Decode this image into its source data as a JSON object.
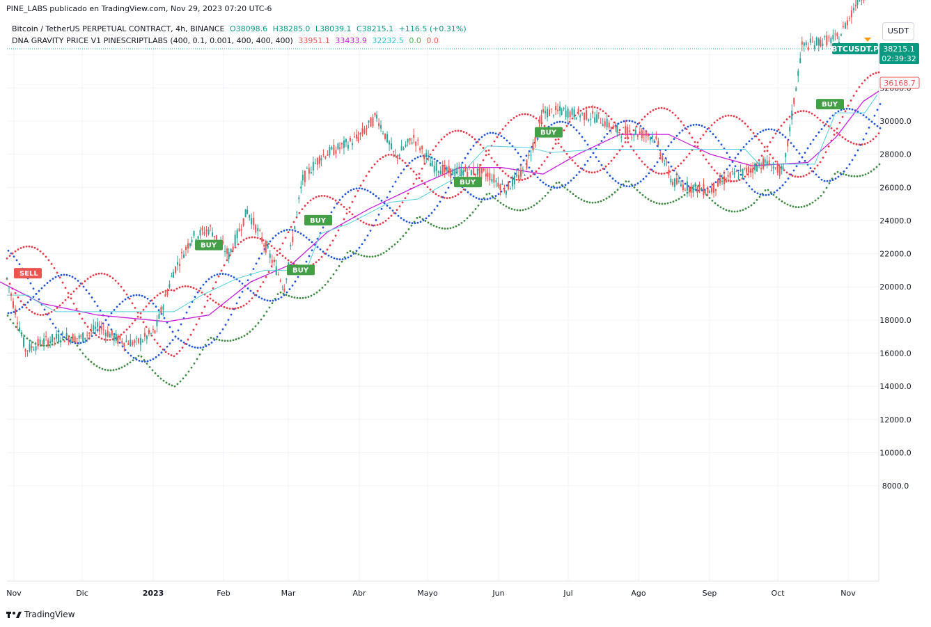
{
  "header": {
    "published": "PINE_LABS publicado en TradingView.com, Nov 29, 2023 07:20 UTC-6",
    "symbol_line": "Bitcoin / TetherUS PERPETUAL CONTRACT, 4h, BINANCE",
    "ohlc": {
      "o": "O38098.6",
      "h": "H38285.0",
      "l": "L38039.1",
      "c": "C38215.1",
      "chg": "+116.5 (+0.31%)"
    },
    "indicator_name": "DNA GRAVITY PRICE V1 PINESCRIPTLABS (400, 0.1, 0.001, 400, 400, 400)",
    "indicator_values": [
      {
        "text": "33951.1",
        "color": "#ef5350"
      },
      {
        "text": "33433.9",
        "color": "#c71ede"
      },
      {
        "text": "32232.5",
        "color": "#26c6da"
      },
      {
        "text": "0.0",
        "color": "#4caf50"
      },
      {
        "text": "0.0",
        "color": "#ef5350"
      }
    ],
    "currency_button": "USDT"
  },
  "footer": {
    "brand": "TradingView"
  },
  "price_labels": {
    "symbol_tag": "BTCUSDT.P",
    "last_price": "38215.1",
    "countdown": "02:39:32",
    "level_price": "36168.7"
  },
  "colors": {
    "up": "#26a69a",
    "down": "#ef5350",
    "red_dots": "#f23645",
    "blue_dots": "#1e53e5",
    "green_dots": "#388e3c",
    "magenta": "#c71ede",
    "cyan": "#4dd0e1",
    "buy": "#43a047",
    "sell": "#ef5350"
  },
  "chart_data": {
    "type": "line",
    "y_axis_ticks": [
      "34000.0",
      "32000.0",
      "30000.0",
      "28000.0",
      "26000.0",
      "24000.0",
      "22000.0",
      "20000.0",
      "18000.0",
      "16000.0",
      "14000.0",
      "12000.0",
      "10000.0",
      "8000.0"
    ],
    "ylim": [
      7000,
      38500
    ],
    "x_axis_ticks": [
      "Nov",
      "Dic",
      "2023",
      "Feb",
      "Mar",
      "Abr",
      "Mayo",
      "Jun",
      "Jul",
      "Ago",
      "Sep",
      "Oct",
      "Nov"
    ],
    "price_series": {
      "name": "BTCUSDT.P",
      "points": [
        [
          "Nov",
          20500
        ],
        [
          "Nov",
          16200
        ],
        [
          "Nov",
          16700
        ],
        [
          "Dic",
          17000
        ],
        [
          "Dic",
          16900
        ],
        [
          "Dic",
          17600
        ],
        [
          "Dic",
          16800
        ],
        [
          "2023",
          16600
        ],
        [
          "2023",
          17300
        ],
        [
          "2023",
          20900
        ],
        [
          "Feb",
          23000
        ],
        [
          "Feb",
          23500
        ],
        [
          "Feb",
          21900
        ],
        [
          "Feb",
          24600
        ],
        [
          "Mar",
          22400
        ],
        [
          "Mar",
          20000
        ],
        [
          "Mar",
          26500
        ],
        [
          "Mar",
          27900
        ],
        [
          "Abr",
          28400
        ],
        [
          "Abr",
          29000
        ],
        [
          "Abr",
          30300
        ],
        [
          "Abr",
          27800
        ],
        [
          "Mayo",
          29000
        ],
        [
          "Mayo",
          27300
        ],
        [
          "Mayo",
          26900
        ],
        [
          "Mayo",
          27000
        ],
        [
          "Jun",
          26800
        ],
        [
          "Jun",
          25900
        ],
        [
          "Jun",
          27000
        ],
        [
          "Jun",
          30500
        ],
        [
          "Jul",
          30600
        ],
        [
          "Jul",
          30400
        ],
        [
          "Jul",
          30200
        ],
        [
          "Jul",
          29400
        ],
        [
          "Ago",
          29300
        ],
        [
          "Ago",
          29100
        ],
        [
          "Ago",
          26300
        ],
        [
          "Sep",
          26000
        ],
        [
          "Sep",
          25800
        ],
        [
          "Sep",
          26600
        ],
        [
          "Sep",
          27000
        ],
        [
          "Oct",
          27500
        ],
        [
          "Oct",
          26900
        ],
        [
          "Oct",
          34500
        ],
        [
          "Oct",
          34800
        ],
        [
          "Nov",
          35000
        ],
        [
          "Nov",
          37300
        ],
        [
          "Nov",
          38215
        ]
      ]
    },
    "series": [
      {
        "name": "33951.1",
        "color": "#ef5350",
        "style": "dotted oscillating (upper)"
      },
      {
        "name": "33433.9",
        "color": "#c71ede",
        "style": "line"
      },
      {
        "name": "32232.5",
        "color": "#26c6da",
        "style": "step"
      },
      {
        "name": "0.0",
        "color": "#4caf50",
        "style": "dotted oscillating (lower)"
      },
      {
        "name": "0.0",
        "color": "#ef5350",
        "style": "signal"
      }
    ],
    "magenta_line": [
      [
        0,
        20300
      ],
      [
        60,
        19000
      ],
      [
        140,
        18300
      ],
      [
        240,
        17900
      ],
      [
        300,
        18300
      ],
      [
        360,
        20300
      ],
      [
        420,
        21400
      ],
      [
        470,
        23300
      ],
      [
        530,
        24700
      ],
      [
        600,
        26100
      ],
      [
        660,
        27200
      ],
      [
        720,
        27200
      ],
      [
        780,
        26800
      ],
      [
        830,
        28000
      ],
      [
        890,
        29200
      ],
      [
        960,
        29200
      ],
      [
        1020,
        28000
      ],
      [
        1080,
        27300
      ],
      [
        1160,
        27500
      ],
      [
        1200,
        29000
      ],
      [
        1240,
        31200
      ],
      [
        1262,
        31800
      ]
    ],
    "cyan_line": [
      [
        10,
        19500
      ],
      [
        40,
        19500
      ],
      [
        50,
        19200
      ],
      [
        80,
        18500
      ],
      [
        250,
        18500
      ],
      [
        290,
        19500
      ],
      [
        340,
        20500
      ],
      [
        380,
        21000
      ],
      [
        440,
        21000
      ],
      [
        460,
        23200
      ],
      [
        500,
        23800
      ],
      [
        560,
        25100
      ],
      [
        600,
        25300
      ],
      [
        660,
        26700
      ],
      [
        700,
        28500
      ],
      [
        760,
        28400
      ],
      [
        790,
        28100
      ],
      [
        860,
        28300
      ],
      [
        1070,
        28300
      ],
      [
        1090,
        27400
      ],
      [
        1170,
        27400
      ],
      [
        1200,
        30500
      ],
      [
        1242,
        30500
      ],
      [
        1260,
        31600
      ]
    ],
    "signals": [
      {
        "label": "SELL",
        "x_date": "Nov",
        "price": 20800
      },
      {
        "label": "BUY",
        "x_date": "Feb",
        "price": 22500
      },
      {
        "label": "BUY",
        "x_date": "Mar",
        "price": 21000
      },
      {
        "label": "BUY",
        "x_date": "Mar",
        "price": 24000
      },
      {
        "label": "BUY",
        "x_date": "Mayo",
        "price": 26300
      },
      {
        "label": "BUY",
        "x_date": "Jun",
        "price": 29300
      },
      {
        "label": "BUY",
        "x_date": "Oct",
        "price": 31000
      }
    ],
    "grid": true,
    "legend": "top-left"
  }
}
